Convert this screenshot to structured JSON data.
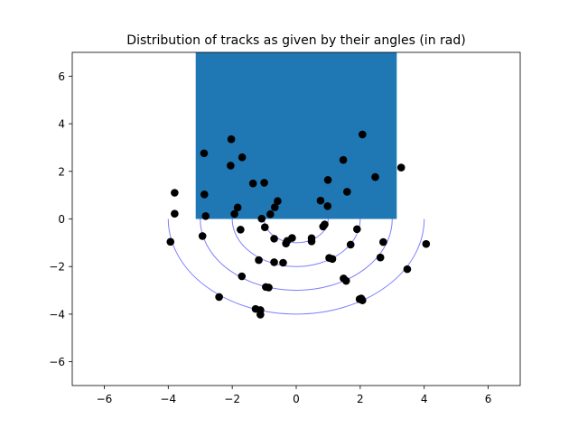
{
  "chart_data": {
    "type": "scatter",
    "title": "Distribution of tracks as given by their angles (in rad)",
    "xlabel": "",
    "ylabel": "",
    "xlim": [
      -7,
      7
    ],
    "ylim": [
      -7,
      7
    ],
    "xticks": [
      -6,
      -4,
      -2,
      0,
      2,
      4,
      6
    ],
    "yticks": [
      -6,
      -4,
      -2,
      0,
      2,
      4,
      6
    ],
    "grid": false,
    "colors": {
      "rectangle": "#1f77b4",
      "points": "#000000",
      "circles": "#7f7fff"
    },
    "rectangle": {
      "x0": -3.1416,
      "x1": 3.1416,
      "y0": 0,
      "y1": 7
    },
    "circles": {
      "center": [
        0,
        0
      ],
      "radii": [
        1,
        2,
        3,
        4
      ],
      "arc": "lower-half"
    },
    "points": [
      [
        -3.93,
        -0.96
      ],
      [
        -3.8,
        1.1
      ],
      [
        -3.8,
        0.22
      ],
      [
        -2.93,
        -0.72
      ],
      [
        -2.88,
        2.76
      ],
      [
        -2.87,
        1.03
      ],
      [
        -2.83,
        0.12
      ],
      [
        -2.03,
        3.35
      ],
      [
        -2.05,
        2.24
      ],
      [
        -1.93,
        0.21
      ],
      [
        -1.83,
        0.48
      ],
      [
        -1.69,
        2.59
      ],
      [
        -1.74,
        -0.45
      ],
      [
        -1.7,
        -2.41
      ],
      [
        -1.35,
        1.49
      ],
      [
        -1.17,
        -1.73
      ],
      [
        -1.08,
        0.01
      ],
      [
        -1.0,
        1.52
      ],
      [
        -0.98,
        -0.35
      ],
      [
        -0.81,
        0.2
      ],
      [
        -0.67,
        0.49
      ],
      [
        -0.58,
        0.75
      ],
      [
        -0.69,
        -0.83
      ],
      [
        -0.69,
        -1.82
      ],
      [
        -0.41,
        -1.84
      ],
      [
        -0.32,
        -1.03
      ],
      [
        -0.28,
        -0.92
      ],
      [
        -0.13,
        -0.8
      ],
      [
        0.48,
        -0.81
      ],
      [
        0.48,
        -0.94
      ],
      [
        0.76,
        0.77
      ],
      [
        0.84,
        -0.32
      ],
      [
        0.89,
        -0.23
      ],
      [
        0.98,
        0.54
      ],
      [
        0.99,
        1.64
      ],
      [
        1.03,
        -1.64
      ],
      [
        1.13,
        -1.68
      ],
      [
        1.47,
        2.48
      ],
      [
        1.48,
        -2.5
      ],
      [
        1.56,
        -2.6
      ],
      [
        1.59,
        1.14
      ],
      [
        1.7,
        -1.08
      ],
      [
        1.9,
        -0.43
      ],
      [
        2.03,
        -3.34
      ],
      [
        2.07,
        3.55
      ],
      [
        2.47,
        1.76
      ],
      [
        2.63,
        -1.62
      ],
      [
        2.72,
        -0.97
      ],
      [
        3.28,
        2.16
      ],
      [
        3.47,
        -2.11
      ],
      [
        4.06,
        -1.05
      ],
      [
        -0.95,
        -2.86
      ],
      [
        -0.86,
        -2.88
      ],
      [
        -1.12,
        -3.83
      ],
      [
        -1.27,
        -3.78
      ],
      [
        -1.12,
        -4.02
      ],
      [
        -2.41,
        -3.28
      ],
      [
        1.98,
        -3.37
      ],
      [
        2.07,
        -3.42
      ]
    ]
  }
}
